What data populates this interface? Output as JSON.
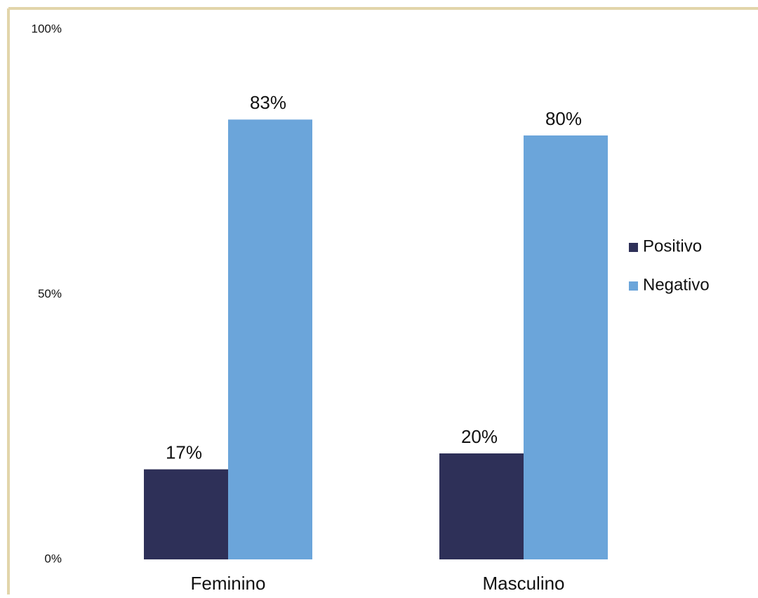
{
  "chart_data": {
    "type": "bar",
    "categories": [
      "Feminino",
      "Masculino"
    ],
    "series": [
      {
        "name": "Positivo",
        "color": "#2e3058",
        "values": [
          17,
          20
        ],
        "value_labels": [
          "17%",
          "20%"
        ]
      },
      {
        "name": "Negativo",
        "color": "#6ba5da",
        "values": [
          83,
          80
        ],
        "value_labels": [
          "83%",
          "80%"
        ]
      }
    ],
    "ylim": [
      0,
      100
    ],
    "yticks": [
      {
        "value": 0,
        "label": "0%"
      },
      {
        "value": 50,
        "label": "50%"
      },
      {
        "value": 100,
        "label": "100%"
      }
    ],
    "grid": false,
    "legend": "right"
  }
}
